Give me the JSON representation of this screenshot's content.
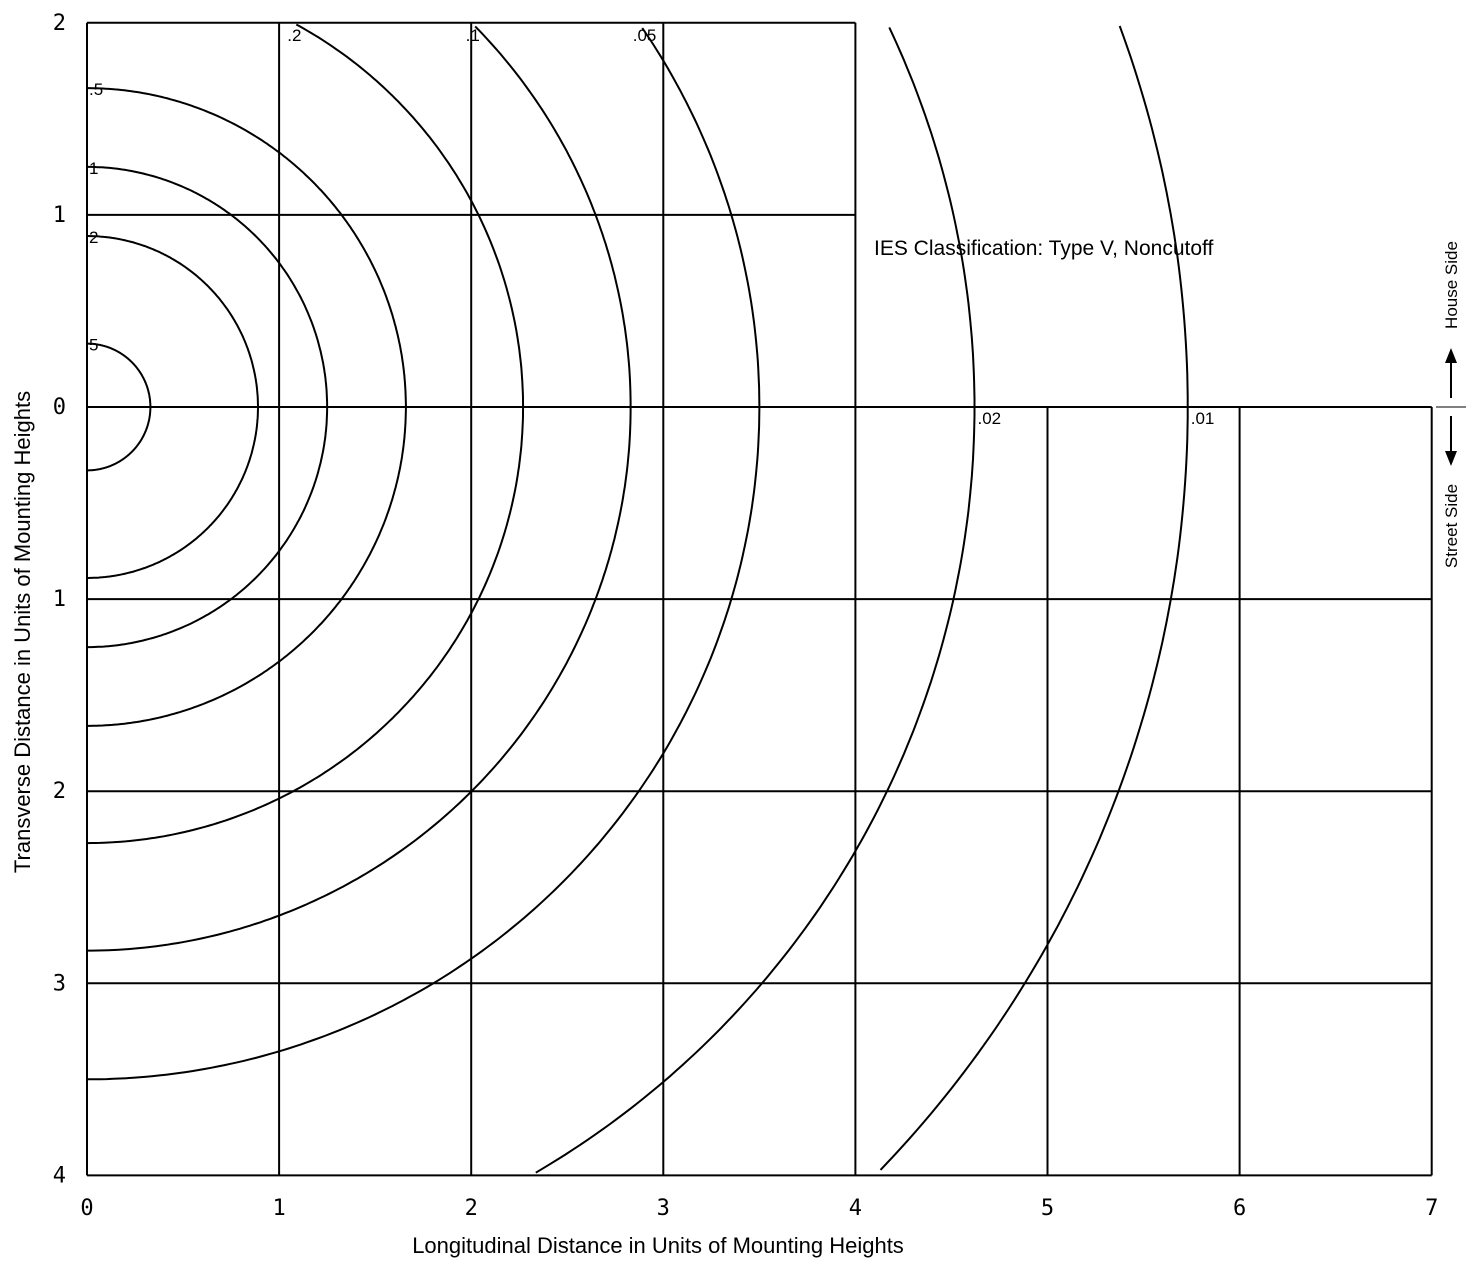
{
  "chart_data": {
    "type": "isofootcandle",
    "annotation": "IES Classification:  Type V, Noncutoff",
    "xlabel": "Longitudinal Distance in Units of Mounting Heights",
    "ylabel": "Transverse Distance in Units of Mounting Heights",
    "xlim": [
      0,
      7
    ],
    "ylim_house_side": [
      0,
      2
    ],
    "ylim_street_side": [
      0,
      4
    ],
    "x_ticks": [
      "0",
      "1",
      "2",
      "3",
      "4",
      "5",
      "6",
      "7"
    ],
    "y_ticks_house_side": [
      "0",
      "1",
      "2"
    ],
    "y_ticks_street_side": [
      "1",
      "2",
      "3",
      "4"
    ],
    "grid": true,
    "sides": {
      "house": "House Side",
      "street": "Street Side"
    },
    "contours": [
      {
        "label": "5",
        "house_radius": 0.33,
        "street_radius": 0.33
      },
      {
        "label": "2",
        "house_radius": 0.89,
        "street_radius": 0.89
      },
      {
        "label": "1",
        "house_radius": 1.25,
        "street_radius": 1.25
      },
      {
        "label": ".5",
        "house_radius": 1.66,
        "street_radius": 1.66
      },
      {
        "label": ".2",
        "house_radius": 2.27,
        "street_radius": 2.27
      },
      {
        "label": ".1",
        "house_radius": 2.83,
        "street_radius": 2.83
      },
      {
        "label": ".05",
        "house_radius": 3.5,
        "street_radius": 3.5
      },
      {
        "label": ".02",
        "house_radius": 4.62,
        "street_radius": 4.62
      },
      {
        "label": ".01",
        "house_radius": 5.73,
        "street_radius": 5.73
      }
    ]
  }
}
